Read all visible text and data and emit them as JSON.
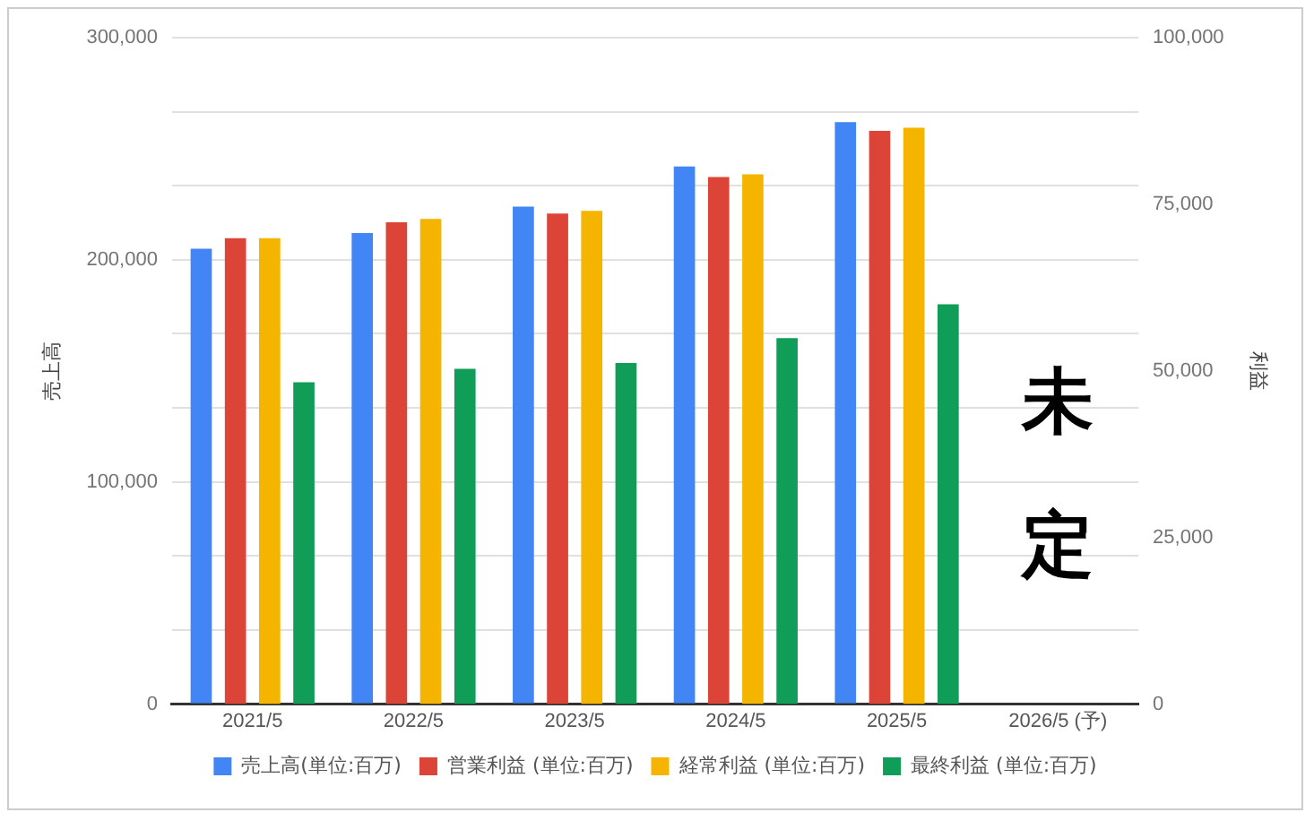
{
  "chart_data": {
    "type": "bar",
    "categories": [
      "2021/5",
      "2022/5",
      "2023/5",
      "2024/5",
      "2025/5",
      "2026/5 (予)"
    ],
    "ylabel": "売上高",
    "y2label": "利益",
    "series": [
      {
        "name": "売上高(単位:百万)",
        "color": "#4285f4",
        "values": [
          205000,
          212000,
          224000,
          242000,
          262000,
          0
        ]
      },
      {
        "name": "営業利益 (単位:百万)",
        "color": "#db4437",
        "axis": "y2",
        "values": [
          69900,
          72300,
          73600,
          79100,
          86000,
          null
        ]
      },
      {
        "name": "経常利益 (単位:百万)",
        "color": "#f4b400",
        "axis": "y2",
        "values": [
          69900,
          72800,
          74000,
          79500,
          86500,
          null
        ]
      },
      {
        "name": "最終利益 (単位:百万)",
        "color": "#0f9d58",
        "axis": "y2",
        "values": [
          48300,
          50300,
          51200,
          54900,
          60000,
          null
        ]
      }
    ],
    "ylim": [
      0,
      300000
    ],
    "yticks": [
      0,
      {
        "value": 33333,
        "label": null
      },
      {
        "value": 66667,
        "label": null
      },
      {
        "value": 100000,
        "label": "100,000"
      },
      {
        "value": 133333,
        "label": null
      },
      {
        "value": 166667,
        "label": null
      },
      {
        "value": 200000,
        "label": "200,000"
      },
      {
        "value": 233333,
        "label": null
      },
      {
        "value": 266667,
        "label": null
      },
      {
        "value": 300000,
        "label": "300,000"
      }
    ],
    "y2lim": [
      0,
      100000
    ],
    "y2ticks": [
      0,
      {
        "value": 25000,
        "label": "25,000"
      },
      {
        "value": 50000,
        "label": "50,000"
      },
      {
        "value": 75000,
        "label": "75,000"
      },
      {
        "value": 100000,
        "label": "100,000"
      }
    ],
    "grid": "y",
    "legend": "bottom",
    "annotations": [
      "未定"
    ]
  }
}
